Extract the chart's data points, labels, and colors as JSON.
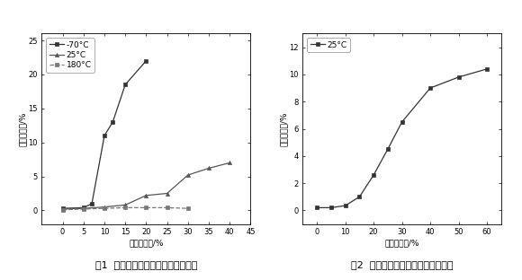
{
  "fig1": {
    "title": "图1  马氏体含量与拉伸形变量的关系",
    "xlabel": "拉伸变形量/%",
    "ylabel": "马氏体含量/%",
    "xlim": [
      -5,
      45
    ],
    "ylim": [
      -2,
      26
    ],
    "xticks": [
      0,
      5,
      10,
      15,
      20,
      25,
      30,
      35,
      40,
      45
    ],
    "yticks": [
      0,
      5,
      10,
      15,
      20,
      25
    ],
    "series": [
      {
        "label": "-70°C",
        "x": [
          0,
          5,
          7,
          10,
          12,
          15,
          20
        ],
        "y": [
          0.3,
          0.4,
          1.0,
          11.0,
          13.0,
          18.5,
          22.0
        ],
        "marker": "s",
        "linestyle": "-",
        "color": "#333333"
      },
      {
        "label": "25°C",
        "x": [
          0,
          5,
          10,
          15,
          20,
          25,
          30,
          35,
          40
        ],
        "y": [
          0.2,
          0.3,
          0.5,
          0.8,
          2.2,
          2.5,
          5.2,
          6.2,
          7.0
        ],
        "marker": "^",
        "linestyle": "-",
        "color": "#555555"
      },
      {
        "label": "180°C",
        "x": [
          0,
          5,
          10,
          15,
          20,
          25,
          30
        ],
        "y": [
          0.1,
          0.2,
          0.3,
          0.4,
          0.4,
          0.4,
          0.3
        ],
        "marker": "s",
        "linestyle": "--",
        "color": "#777777"
      }
    ]
  },
  "fig2": {
    "title": "图2  马氏体含量与轧制形变量的关系",
    "xlabel": "轧制形变量/%",
    "ylabel": "马氏体含量/%",
    "xlim": [
      -5,
      65
    ],
    "ylim": [
      -1,
      13
    ],
    "xticks": [
      0,
      10,
      20,
      30,
      40,
      50,
      60
    ],
    "yticks": [
      0,
      2,
      4,
      6,
      8,
      10,
      12
    ],
    "series": [
      {
        "label": "25°C",
        "x": [
          0,
          5,
          10,
          15,
          20,
          25,
          30,
          40,
          50,
          60
        ],
        "y": [
          0.2,
          0.2,
          0.35,
          1.0,
          2.6,
          4.5,
          6.5,
          9.0,
          9.8,
          10.4
        ],
        "marker": "s",
        "linestyle": "-",
        "color": "#333333"
      }
    ]
  },
  "bg_color": "#ffffff",
  "font_size_label": 6.5,
  "font_size_tick": 6.0,
  "font_size_legend": 6.5,
  "font_size_title": 8.0
}
